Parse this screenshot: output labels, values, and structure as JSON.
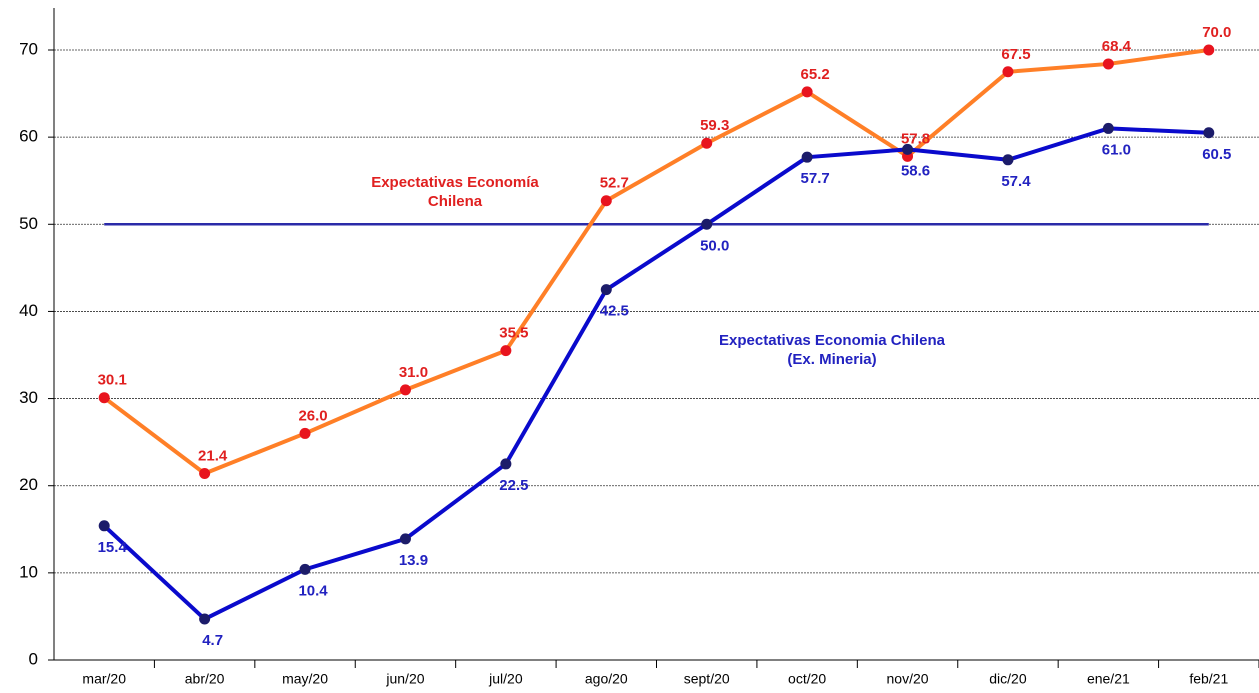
{
  "chart_data": {
    "type": "line",
    "categories": [
      "mar/20",
      "abr/20",
      "may/20",
      "jun/20",
      "jul/20",
      "ago/20",
      "sept/20",
      "oct/20",
      "nov/20",
      "dic/20",
      "ene/21",
      "feb/21"
    ],
    "series": [
      {
        "color": "#ff7f27",
        "marker_color": "#e8141e",
        "label_color": "#e02020",
        "label_side": "above",
        "values": [
          30.1,
          21.4,
          26.0,
          31.0,
          35.5,
          52.7,
          59.3,
          65.2,
          57.8,
          67.5,
          68.4,
          70.0
        ],
        "value_labels": [
          "30.1",
          "21.4",
          "26.0",
          "31.0",
          "35.5",
          "52.7",
          "59.3",
          "65.2",
          "57.8",
          "67.5",
          "68.4",
          "70.0"
        ]
      },
      {
        "color": "#0a0acc",
        "marker_color": "#1c1c6a",
        "label_color": "#2222c0",
        "label_side": "below",
        "values": [
          15.4,
          4.7,
          10.4,
          13.9,
          22.5,
          42.5,
          50.0,
          57.7,
          58.6,
          57.4,
          61.0,
          60.5
        ],
        "value_labels": [
          "15.4",
          "4.7",
          "10.4",
          "13.9",
          "22.5",
          "42.5",
          "50.0",
          "57.7",
          "58.6",
          "57.4",
          "61.0",
          "60.5"
        ]
      }
    ],
    "reference_line": {
      "value": 50,
      "color": "#2a2aa8"
    },
    "annotations": [
      {
        "lines": [
          "Expectativas Economía",
          "Chilena"
        ],
        "color": "#e02020"
      },
      {
        "lines": [
          "Expectativas Economia Chilena",
          "(Ex. Mineria)"
        ],
        "color": "#2222c0"
      }
    ],
    "ylim": [
      0,
      70
    ],
    "yticks": [
      0,
      10,
      20,
      30,
      40,
      50,
      60,
      70
    ],
    "grid": true
  }
}
